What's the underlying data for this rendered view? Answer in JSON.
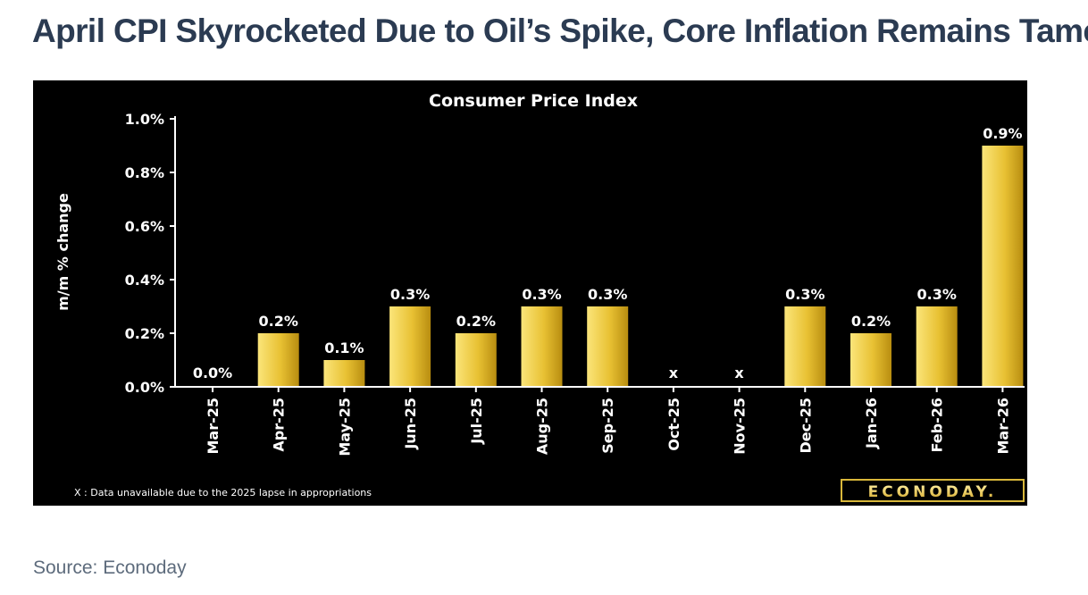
{
  "headline": "April CPI Skyrocketed Due to Oil’s Spike, Core Inflation Remains Tame",
  "source": "Source: Econoday",
  "colors": {
    "headline": "#2b3b52",
    "panel_background": "#000000",
    "bar_light": "#fbe57a",
    "bar_mid": "#e8c133",
    "bar_dark": "#b88d10",
    "text": "#ffffff",
    "source": "#5d6b7c"
  },
  "chart_data": {
    "type": "bar",
    "title": "Consumer Price Index",
    "ylabel": "m/m % change",
    "xlabel": "",
    "ylim": [
      0,
      1.0
    ],
    "yticks": [
      "0.0%",
      "0.2%",
      "0.4%",
      "0.6%",
      "0.8%",
      "1.0%"
    ],
    "categories": [
      "Mar-25",
      "Apr-25",
      "May-25",
      "Jun-25",
      "Jul-25",
      "Aug-25",
      "Sep-25",
      "Oct-25",
      "Nov-25",
      "Dec-25",
      "Jan-26",
      "Feb-26",
      "Mar-26"
    ],
    "values": [
      0.0,
      0.2,
      0.1,
      0.3,
      0.2,
      0.3,
      0.3,
      null,
      null,
      0.3,
      0.2,
      0.3,
      0.9
    ],
    "data_labels": [
      "0.0%",
      "0.2%",
      "0.1%",
      "0.3%",
      "0.2%",
      "0.3%",
      "0.3%",
      "x",
      "x",
      "0.3%",
      "0.2%",
      "0.3%",
      "0.9%"
    ],
    "grid": false,
    "footnote": "X : Data unavailable due to the 2025 lapse in appropriations",
    "logo": "ECONODAY."
  }
}
